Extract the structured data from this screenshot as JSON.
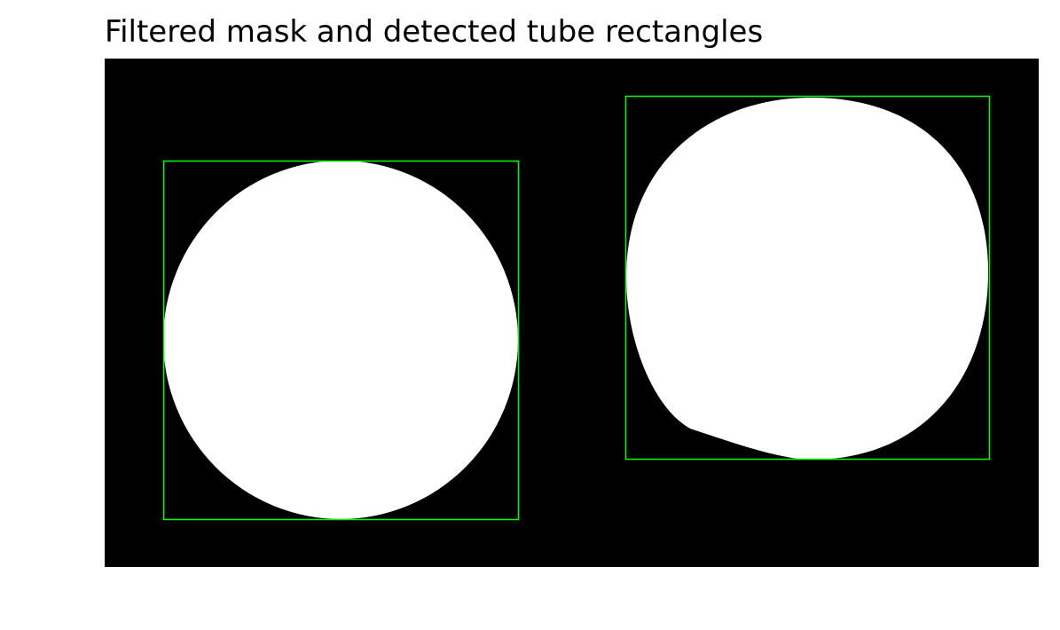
{
  "figure": {
    "title": "Filtered mask and detected tube rectangles"
  },
  "colors": {
    "background": "#000000",
    "mask": "#ffffff",
    "rectangle_outline": "#00ff00"
  },
  "objects": [
    {
      "kind": "white-circular-blob-with-green-bounding-rectangle"
    },
    {
      "kind": "white-circular-blob-with-green-bounding-rectangle"
    }
  ]
}
